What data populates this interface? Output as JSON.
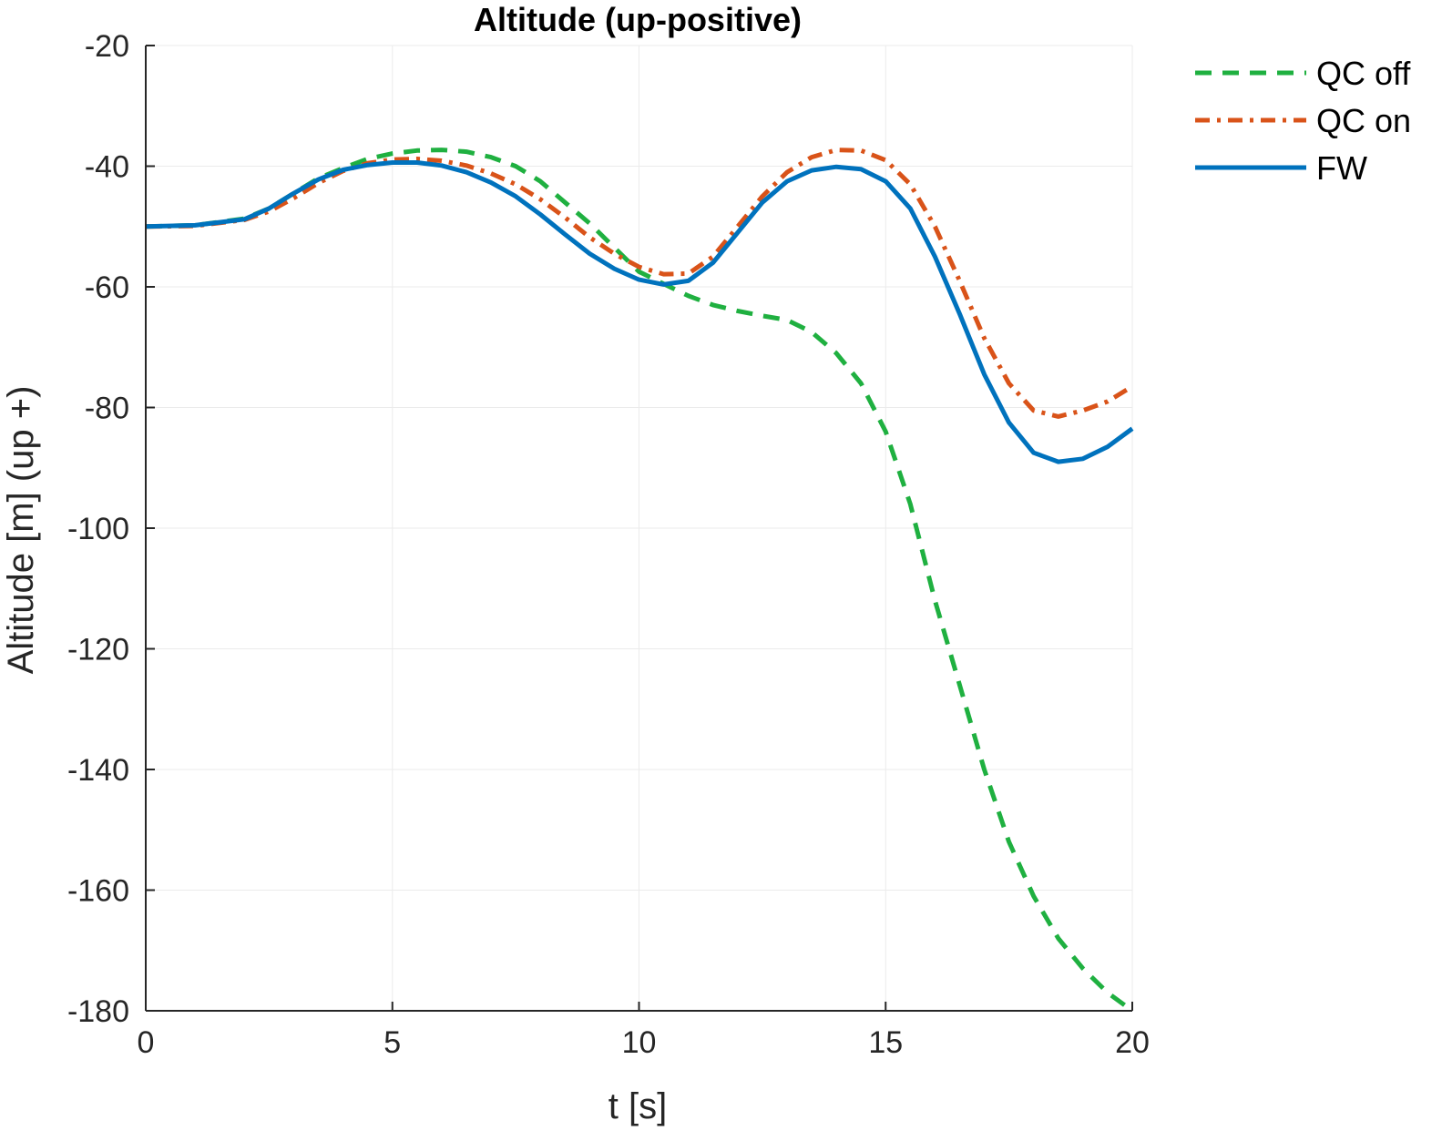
{
  "chart_data": {
    "type": "line",
    "title": "Altitude (up-positive)",
    "xlabel": "t [s]",
    "ylabel": "Altitude [m] (up +)",
    "xlim": [
      0,
      20
    ],
    "ylim": [
      -180,
      -20
    ],
    "xticks": [
      0,
      5,
      10,
      15,
      20
    ],
    "yticks": [
      -20,
      -40,
      -60,
      -80,
      -100,
      -120,
      -140,
      -160,
      -180
    ],
    "grid": true,
    "legend_position": "outside-top-right",
    "series": [
      {
        "name": "QC off",
        "color": "#1fb040",
        "style": "dashed",
        "x": [
          0,
          1,
          2,
          2.5,
          3,
          3.5,
          4,
          4.5,
          5,
          5.5,
          6,
          6.5,
          7,
          7.5,
          8,
          8.5,
          9,
          9.5,
          10,
          10.5,
          11,
          11.5,
          12,
          12.5,
          13,
          13.5,
          14,
          14.5,
          15,
          15.5,
          16,
          16.5,
          17,
          17.5,
          18,
          18.5,
          19,
          19.5,
          20
        ],
        "y": [
          -50,
          -49.8,
          -48.7,
          -47,
          -44.5,
          -42,
          -40.3,
          -38.8,
          -37.9,
          -37.4,
          -37.3,
          -37.6,
          -38.5,
          -40,
          -42.5,
          -46,
          -49.5,
          -53.5,
          -57.5,
          -59.5,
          -61.5,
          -63,
          -64,
          -64.8,
          -65.5,
          -67.5,
          -71,
          -76,
          -84,
          -96,
          -112,
          -126,
          -140,
          -152,
          -161,
          -168,
          -173,
          -177,
          -180
        ]
      },
      {
        "name": "QC on",
        "color": "#d95319",
        "style": "dash-dot",
        "x": [
          0,
          1,
          2,
          2.5,
          3,
          3.5,
          4,
          4.5,
          5,
          5.5,
          6,
          6.5,
          7,
          7.5,
          8,
          8.5,
          9,
          9.5,
          10,
          10.5,
          11,
          11.5,
          12,
          12.5,
          13,
          13.5,
          14,
          14.5,
          15,
          15.5,
          16,
          16.5,
          17,
          17.5,
          18,
          18.5,
          19,
          19.5,
          20
        ],
        "y": [
          -50,
          -49.9,
          -48.9,
          -47.5,
          -45.3,
          -42.8,
          -40.8,
          -39.5,
          -38.9,
          -38.8,
          -39.1,
          -39.9,
          -41.2,
          -43,
          -45.5,
          -48.5,
          -51.8,
          -54.5,
          -56.7,
          -57.9,
          -57.8,
          -55,
          -50,
          -45,
          -41,
          -38.5,
          -37.3,
          -37.4,
          -39,
          -43,
          -50,
          -59,
          -68.5,
          -76,
          -80.5,
          -81.5,
          -80.5,
          -79,
          -76.5
        ]
      },
      {
        "name": "FW",
        "color": "#0072bd",
        "style": "solid",
        "x": [
          0,
          1,
          2,
          2.5,
          3,
          3.5,
          4,
          4.5,
          5,
          5.5,
          6,
          6.5,
          7,
          7.5,
          8,
          8.5,
          9,
          9.5,
          10,
          10.5,
          11,
          11.5,
          12,
          12.5,
          13,
          13.5,
          14,
          14.5,
          15,
          15.5,
          16,
          16.5,
          17,
          17.5,
          18,
          18.5,
          19,
          19.5,
          20
        ],
        "y": [
          -50,
          -49.8,
          -48.8,
          -47,
          -44.5,
          -42.2,
          -40.6,
          -39.8,
          -39.4,
          -39.4,
          -39.9,
          -41,
          -42.7,
          -45,
          -48,
          -51.3,
          -54.5,
          -57,
          -58.8,
          -59.6,
          -59,
          -56,
          -51,
          -46,
          -42.5,
          -40.7,
          -40.1,
          -40.5,
          -42.5,
          -47,
          -55,
          -64.5,
          -74.5,
          -82.5,
          -87.5,
          -89,
          -88.5,
          -86.5,
          -83.5
        ]
      }
    ]
  }
}
